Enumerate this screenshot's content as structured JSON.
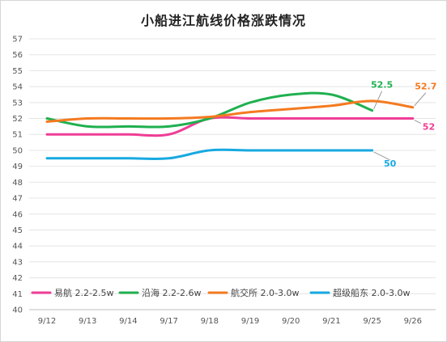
{
  "chart_data": {
    "type": "line",
    "title": "小船进江航线价格涨跌情况",
    "categories": [
      "9/12",
      "9/13",
      "9/14",
      "9/17",
      "9/18",
      "9/19",
      "9/20",
      "9/21",
      "9/25",
      "9/26"
    ],
    "ylim": [
      40,
      57
    ],
    "yticks": [
      40,
      41,
      42,
      43,
      44,
      45,
      46,
      47,
      48,
      49,
      50,
      51,
      52,
      53,
      54,
      55,
      56,
      57
    ],
    "grid": true,
    "legend_position": "bottom",
    "series": [
      {
        "name": "易航 2.2-2.5w",
        "color": "#ef3d96",
        "values": [
          51,
          51,
          51,
          51,
          52,
          52,
          52,
          52,
          52,
          52
        ],
        "end_label": "52"
      },
      {
        "name": "沿海 2.2-2.6w",
        "color": "#1fb04f",
        "values": [
          52,
          51.5,
          51.5,
          51.5,
          52,
          53,
          53.5,
          53.5,
          52.5,
          null
        ],
        "end_label": "52.5"
      },
      {
        "name": "航交所 2.0-3.0w",
        "color": "#f47a20",
        "values": [
          51.8,
          52,
          52,
          52,
          52.1,
          52.4,
          52.6,
          52.8,
          53.1,
          52.7
        ],
        "end_label": "52.7"
      },
      {
        "name": "超级船东 2.0-3.0w",
        "color": "#17a9e1",
        "values": [
          49.5,
          49.5,
          49.5,
          49.5,
          50,
          50,
          50,
          50,
          50,
          null
        ],
        "end_label": "50"
      }
    ]
  }
}
